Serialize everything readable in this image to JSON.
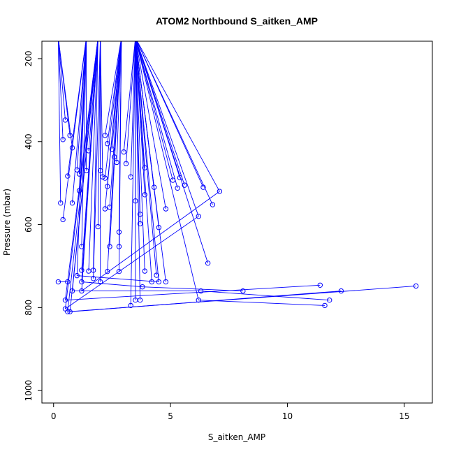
{
  "chart_data": {
    "type": "scatter",
    "title": "ATOM2 Northbound S_aitken_AMP",
    "xlabel": "S_aitken_AMP",
    "ylabel": "Pressure (mbar)",
    "xlim": [
      -0.5,
      16.2
    ],
    "ylim": [
      1030,
      158
    ],
    "y_reversed": true,
    "x_ticks": [
      0,
      5,
      10,
      15
    ],
    "x_tick_labels": [
      "0",
      "5",
      "10",
      "15"
    ],
    "y_ticks": [
      200,
      400,
      600,
      800,
      1000
    ],
    "y_tick_labels": [
      "200",
      "400",
      "600",
      "800",
      "1000"
    ],
    "grid": false,
    "series_style": {
      "color": "#0000ff",
      "marker": "open-circle",
      "connect": "lines"
    },
    "series": [
      {
        "values": [
          [
            0.2,
            150
          ],
          [
            0.4,
            395
          ],
          [
            0.3,
            548
          ],
          [
            0.5,
            348
          ],
          [
            0.7,
            385
          ],
          [
            0.8,
            415
          ],
          [
            1.0,
            468
          ],
          [
            1.1,
            478
          ],
          [
            0.6,
            483
          ],
          [
            1.4,
            470
          ],
          [
            1.5,
            422
          ],
          [
            1.1,
            518
          ],
          [
            0.8,
            548
          ],
          [
            0.4,
            588
          ],
          [
            1.2,
            653
          ],
          [
            1.0,
            723
          ],
          [
            1.2,
            710
          ],
          [
            1.5,
            712
          ],
          [
            1.7,
            710
          ],
          [
            1.2,
            738
          ],
          [
            0.6,
            738
          ],
          [
            0.2,
            738
          ],
          [
            1.2,
            760
          ],
          [
            0.8,
            760
          ],
          [
            0.5,
            782
          ],
          [
            0.5,
            803
          ],
          [
            0.6,
            810
          ],
          [
            0.7,
            810
          ],
          [
            1.4,
            150
          ],
          [
            1.9,
            150
          ],
          [
            2.2,
            385
          ],
          [
            2.3,
            405
          ],
          [
            2.5,
            418
          ],
          [
            2.6,
            437
          ],
          [
            2.7,
            450
          ],
          [
            2.0,
            470
          ],
          [
            2.1,
            485
          ],
          [
            2.2,
            488
          ],
          [
            2.3,
            508
          ],
          [
            2.4,
            558
          ],
          [
            2.2,
            562
          ],
          [
            1.9,
            605
          ],
          [
            2.8,
            618
          ],
          [
            2.8,
            653
          ],
          [
            2.4,
            653
          ],
          [
            2.3,
            713
          ],
          [
            2.8,
            713
          ],
          [
            1.7,
            730
          ],
          [
            2.0,
            738
          ],
          [
            2.9,
            150
          ],
          [
            3.0,
            425
          ],
          [
            3.1,
            453
          ],
          [
            3.3,
            485
          ],
          [
            3.5,
            543
          ],
          [
            3.7,
            575
          ],
          [
            3.7,
            598
          ],
          [
            3.9,
            463
          ],
          [
            3.9,
            528
          ],
          [
            3.3,
            795
          ],
          [
            3.5,
            782
          ],
          [
            3.7,
            782
          ],
          [
            3.9,
            712
          ],
          [
            4.2,
            738
          ],
          [
            4.4,
            722
          ],
          [
            4.5,
            607
          ],
          [
            4.3,
            510
          ],
          [
            4.8,
            562
          ],
          [
            4.8,
            738
          ],
          [
            4.5,
            738
          ],
          [
            5.1,
            493
          ],
          [
            5.3,
            512
          ],
          [
            5.4,
            487
          ],
          [
            5.6,
            505
          ],
          [
            6.2,
            580
          ],
          [
            6.3,
            760
          ],
          [
            6.2,
            782
          ],
          [
            6.4,
            510
          ],
          [
            6.6,
            693
          ],
          [
            6.8,
            552
          ],
          [
            7.1,
            520
          ],
          [
            8.1,
            760
          ],
          [
            11.4,
            746
          ],
          [
            11.6,
            795
          ],
          [
            11.8,
            782
          ],
          [
            12.3,
            760
          ],
          [
            15.5,
            748
          ],
          [
            3.8,
            750
          ],
          [
            2.0,
            150
          ],
          [
            3.5,
            150
          ]
        ],
        "segments": [
          [
            0,
            1
          ],
          [
            0,
            2
          ],
          [
            0,
            3
          ],
          [
            0,
            4
          ],
          [
            0,
            5
          ],
          [
            28,
            6
          ],
          [
            28,
            7
          ],
          [
            28,
            8
          ],
          [
            28,
            9
          ],
          [
            29,
            10
          ],
          [
            28,
            11
          ],
          [
            28,
            12
          ],
          [
            28,
            13
          ],
          [
            28,
            14
          ],
          [
            28,
            15
          ],
          [
            29,
            16
          ],
          [
            29,
            17
          ],
          [
            29,
            18
          ],
          [
            29,
            19
          ],
          [
            20,
            21
          ],
          [
            29,
            22
          ],
          [
            29,
            23
          ],
          [
            29,
            24
          ],
          [
            29,
            25
          ],
          [
            29,
            26
          ],
          [
            29,
            27
          ],
          [
            49,
            30
          ],
          [
            49,
            31
          ],
          [
            49,
            32
          ],
          [
            49,
            33
          ],
          [
            49,
            34
          ],
          [
            87,
            35
          ],
          [
            87,
            36
          ],
          [
            49,
            37
          ],
          [
            49,
            38
          ],
          [
            49,
            39
          ],
          [
            49,
            40
          ],
          [
            87,
            41
          ],
          [
            49,
            42
          ],
          [
            49,
            43
          ],
          [
            49,
            44
          ],
          [
            49,
            45
          ],
          [
            49,
            46
          ],
          [
            87,
            47
          ],
          [
            87,
            48
          ],
          [
            88,
            50
          ],
          [
            88,
            51
          ],
          [
            88,
            52
          ],
          [
            88,
            53
          ],
          [
            88,
            54
          ],
          [
            88,
            55
          ],
          [
            88,
            56
          ],
          [
            88,
            57
          ],
          [
            88,
            58
          ],
          [
            88,
            59
          ],
          [
            88,
            60
          ],
          [
            88,
            61
          ],
          [
            88,
            62
          ],
          [
            88,
            63
          ],
          [
            88,
            64
          ],
          [
            88,
            65
          ],
          [
            88,
            66
          ],
          [
            88,
            67
          ],
          [
            88,
            68
          ],
          [
            88,
            69
          ],
          [
            88,
            70
          ],
          [
            88,
            71
          ],
          [
            88,
            72
          ],
          [
            88,
            73
          ],
          [
            88,
            75
          ],
          [
            88,
            76
          ],
          [
            88,
            77
          ],
          [
            88,
            78
          ],
          [
            88,
            79
          ],
          [
            26,
            85
          ],
          [
            27,
            84
          ],
          [
            24,
            81
          ],
          [
            74,
            83
          ],
          [
            75,
            82
          ],
          [
            80,
            86
          ],
          [
            15,
            68
          ],
          [
            23,
            74
          ],
          [
            22,
            79
          ],
          [
            25,
            73
          ],
          [
            19,
            86
          ]
        ]
      }
    ]
  }
}
